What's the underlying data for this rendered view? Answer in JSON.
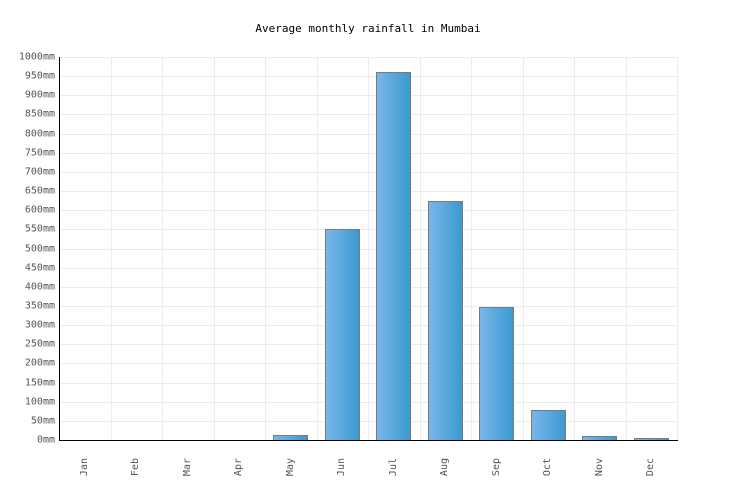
{
  "chart_data": {
    "type": "bar",
    "title": "Average monthly rainfall in Mumbai",
    "xlabel": "",
    "ylabel": "",
    "categories": [
      "Jan",
      "Feb",
      "Mar",
      "Apr",
      "May",
      "Jun",
      "Jul",
      "Aug",
      "Sep",
      "Oct",
      "Nov",
      "Dec"
    ],
    "values": [
      0,
      0,
      0,
      0,
      13,
      551,
      961,
      624,
      347,
      78,
      10,
      2
    ],
    "unit": "mm",
    "ylim": [
      0,
      1000
    ],
    "ytick_step": 50,
    "yticks": [
      "0mm",
      "50mm",
      "100mm",
      "150mm",
      "200mm",
      "250mm",
      "300mm",
      "350mm",
      "400mm",
      "450mm",
      "500mm",
      "550mm",
      "600mm",
      "650mm",
      "700mm",
      "750mm",
      "800mm",
      "850mm",
      "900mm",
      "950mm",
      "1000mm"
    ],
    "grid": true,
    "legend": null,
    "bar_color_gradient": [
      "#7ab6ea",
      "#3a9ad0"
    ],
    "bar_border_color": "#7a7a7a"
  }
}
